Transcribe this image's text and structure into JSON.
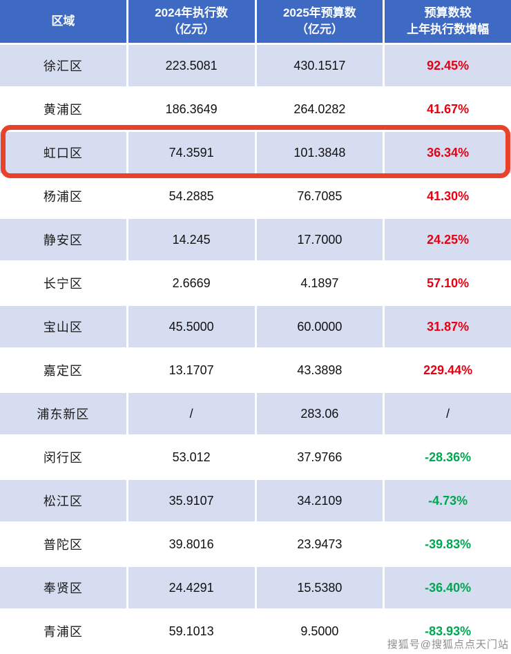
{
  "chart_data": {
    "type": "table",
    "title": "",
    "columns": [
      "区域",
      "2024年执行数（亿元）",
      "2025年预算数（亿元）",
      "预算数较上年执行数增幅"
    ],
    "rows": [
      {
        "district": "徐汇区",
        "y2024": "223.5081",
        "y2025": "430.1517",
        "growth": "92.45%",
        "trend": "up"
      },
      {
        "district": "黄浦区",
        "y2024": "186.3649",
        "y2025": "264.0282",
        "growth": "41.67%",
        "trend": "up"
      },
      {
        "district": "虹口区",
        "y2024": "74.3591",
        "y2025": "101.3848",
        "growth": "36.34%",
        "trend": "up",
        "highlighted": true
      },
      {
        "district": "杨浦区",
        "y2024": "54.2885",
        "y2025": "76.7085",
        "growth": "41.30%",
        "trend": "up"
      },
      {
        "district": "静安区",
        "y2024": "14.245",
        "y2025": "17.7000",
        "growth": "24.25%",
        "trend": "up"
      },
      {
        "district": "长宁区",
        "y2024": "2.6669",
        "y2025": "4.1897",
        "growth": "57.10%",
        "trend": "up"
      },
      {
        "district": "宝山区",
        "y2024": "45.5000",
        "y2025": "60.0000",
        "growth": "31.87%",
        "trend": "up"
      },
      {
        "district": "嘉定区",
        "y2024": "13.1707",
        "y2025": "43.3898",
        "growth": "229.44%",
        "trend": "up"
      },
      {
        "district": "浦东新区",
        "y2024": "/",
        "y2025": "283.06",
        "growth": "/",
        "trend": "flat"
      },
      {
        "district": "闵行区",
        "y2024": "53.012",
        "y2025": "37.9766",
        "growth": "-28.36%",
        "trend": "down"
      },
      {
        "district": "松江区",
        "y2024": "35.9107",
        "y2025": "34.2109",
        "growth": "-4.73%",
        "trend": "down"
      },
      {
        "district": "普陀区",
        "y2024": "39.8016",
        "y2025": "23.9473",
        "growth": "-39.83%",
        "trend": "down"
      },
      {
        "district": "奉贤区",
        "y2024": "24.4291",
        "y2025": "15.5380",
        "growth": "-36.40%",
        "trend": "down"
      },
      {
        "district": "青浦区",
        "y2024": "59.1013",
        "y2025": "9.5000",
        "growth": "-83.93%",
        "trend": "down"
      }
    ]
  },
  "header": {
    "region": "区域",
    "col2024_l1": "2024年执行数",
    "col2024_l2": "（亿元）",
    "col2025_l1": "2025年预算数",
    "col2025_l2": "（亿元）",
    "growth_l1": "预算数较",
    "growth_l2": "上年执行数增幅"
  },
  "watermark": "搜狐号@搜狐点点天门站",
  "colors": {
    "header_bg": "#3e6ac4",
    "row_alt_bg": "#d7ddf0",
    "increase_text": "#e60013",
    "decrease_text": "#00a651",
    "highlight_border": "#e8432a"
  }
}
